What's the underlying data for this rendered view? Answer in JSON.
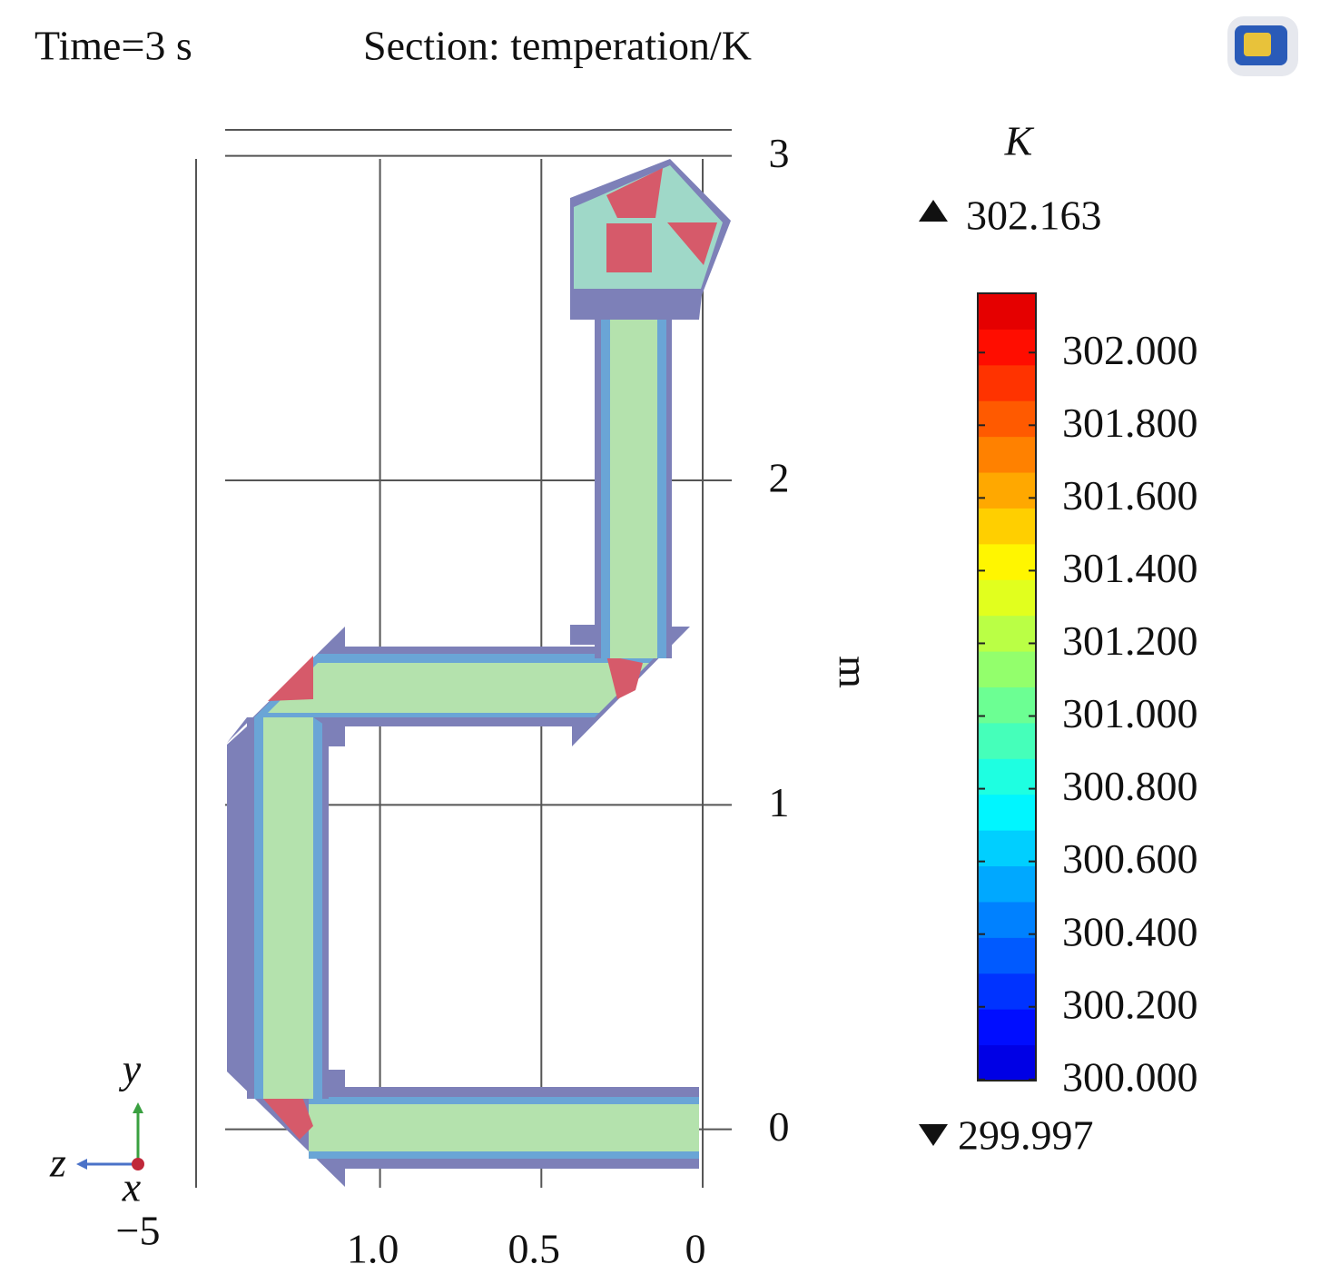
{
  "chart_data": {
    "type": "section",
    "time_label": "Time=3 s",
    "title": "Section: temperation/K",
    "ylabel": "m",
    "xlim": [
      1.57,
      -0.09
    ],
    "ylim": [
      -0.18,
      3.08
    ],
    "xticks": [
      {
        "value": 1.0,
        "label": "1.0"
      },
      {
        "value": 0.5,
        "label": "0.5"
      },
      {
        "value": 0,
        "label": "0"
      }
    ],
    "yticks": [
      0,
      1,
      2,
      3
    ],
    "grid": true,
    "triad": {
      "y": "y",
      "z": "z",
      "x": "x",
      "offset": "−5"
    },
    "colorbar": {
      "unit": "K",
      "max": 302.163,
      "min": 299.997,
      "ticks": [
        {
          "value": 302,
          "label": "302.000"
        },
        {
          "value": 301.8,
          "label": "301.800"
        },
        {
          "value": 301.6,
          "label": "301.600"
        },
        {
          "value": 301.4,
          "label": "301.400"
        },
        {
          "value": 301.2,
          "label": "301.200"
        },
        {
          "value": 301,
          "label": "301.000"
        },
        {
          "value": 300.8,
          "label": "300.800"
        },
        {
          "value": 300.6,
          "label": "300.600"
        },
        {
          "value": 300.4,
          "label": "300.400"
        },
        {
          "value": 300.2,
          "label": "300.200"
        },
        {
          "value": 300,
          "label": "300.000"
        }
      ],
      "colormap": "jet"
    }
  }
}
